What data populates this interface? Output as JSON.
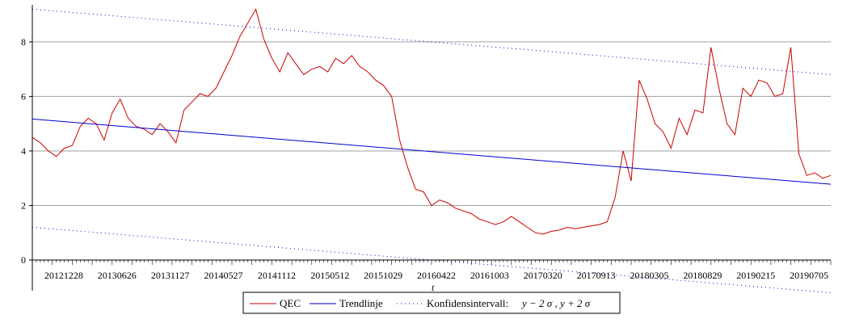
{
  "chart_data": {
    "type": "line",
    "xlabel": "t",
    "ylabel": "",
    "title": "",
    "ylim": [
      0,
      9.3
    ],
    "yticks": [
      0,
      2,
      4,
      6,
      8
    ],
    "xticks": [
      "20121228",
      "20130626",
      "20131127",
      "20140527",
      "20141112",
      "20150512",
      "20151029",
      "20160422",
      "20161003",
      "20170320",
      "20170913",
      "20180305",
      "20180829",
      "20190215",
      "20190705"
    ],
    "grid": "horizontal",
    "legend_position": "bottom",
    "series": [
      {
        "name": "QEC",
        "color": "#cc0000",
        "style": "solid",
        "x": [
          0,
          2,
          4,
          6,
          8,
          10,
          12,
          14,
          16,
          18,
          20,
          22,
          24,
          26,
          28,
          30,
          32,
          34,
          36,
          38,
          40,
          42,
          44,
          46,
          48,
          50,
          52,
          54,
          56,
          58,
          60,
          62,
          64,
          66,
          68,
          70,
          72,
          74,
          76,
          78,
          80,
          82,
          84,
          86,
          88,
          90,
          92,
          94,
          96,
          98,
          100,
          102,
          104,
          106,
          108,
          110,
          112,
          114,
          116,
          118,
          120,
          122,
          124,
          126,
          128,
          130,
          132,
          134,
          136,
          138,
          140,
          142,
          144,
          146,
          148,
          150,
          152,
          154,
          156,
          158,
          160,
          162,
          164,
          166,
          168,
          170,
          172,
          174,
          176,
          178,
          180,
          182,
          184,
          186,
          188,
          190,
          192,
          194,
          196,
          198,
          200
        ],
        "values": [
          4.5,
          4.3,
          4.0,
          3.8,
          4.1,
          4.2,
          4.9,
          5.2,
          5.0,
          4.4,
          5.4,
          5.9,
          5.2,
          4.9,
          4.8,
          4.6,
          5.0,
          4.7,
          4.3,
          5.5,
          5.8,
          6.1,
          6.0,
          6.3,
          6.9,
          7.5,
          8.2,
          8.7,
          9.2,
          8.1,
          7.4,
          6.9,
          7.6,
          7.2,
          6.8,
          7.0,
          7.1,
          6.9,
          7.4,
          7.2,
          7.5,
          7.1,
          6.9,
          6.6,
          6.4,
          6.0,
          4.4,
          3.4,
          2.6,
          2.5,
          2.0,
          2.2,
          2.1,
          1.9,
          1.8,
          1.7,
          1.5,
          1.4,
          1.3,
          1.4,
          1.6,
          1.4,
          1.2,
          1.0,
          0.95,
          1.05,
          1.1,
          1.2,
          1.15,
          1.2,
          1.25,
          1.3,
          1.4,
          2.3,
          4.0,
          2.9,
          6.6,
          5.9,
          5.0,
          4.7,
          4.1,
          5.2,
          4.6,
          5.5,
          5.4,
          7.8,
          6.3,
          5.0,
          4.6,
          6.3,
          6.0,
          6.6,
          6.5,
          6.0,
          6.1,
          7.8,
          3.9,
          3.1,
          3.2,
          3.0,
          3.1
        ]
      },
      {
        "name": "Trendlinje",
        "color": "#0000cc",
        "style": "solid",
        "x": [
          0,
          200
        ],
        "values": [
          5.17,
          2.78
        ]
      },
      {
        "name": "Konfidensintervall:",
        "color": "#0000cc",
        "style": "dotted",
        "x": [
          0,
          200
        ],
        "values": [
          9.2,
          6.8
        ]
      },
      {
        "name": "",
        "color": "#0000cc",
        "style": "dotted",
        "x": [
          0,
          200
        ],
        "values": [
          1.2,
          -1.2
        ]
      }
    ],
    "legend": {
      "items": [
        "QEC",
        "Trendlinje",
        "Konfidensintervall:"
      ],
      "formula": "y − 2 σ , y + 2 σ"
    }
  }
}
